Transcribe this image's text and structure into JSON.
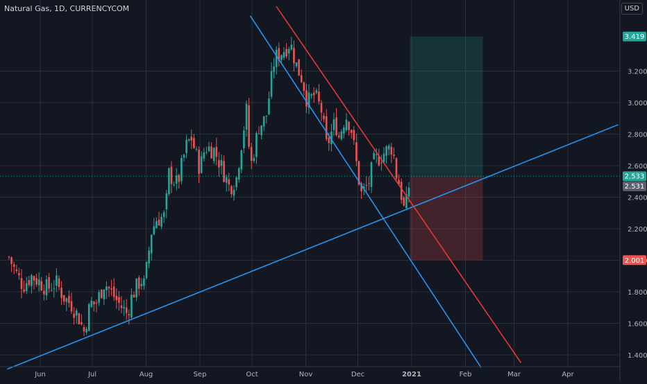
{
  "chart_data": {
    "type": "candlestick",
    "title": "Natural Gas, 1D, CURRENCYCOM",
    "currency": "USD",
    "y_ticks": [
      "1.400",
      "1.600",
      "1.800",
      "2.000",
      "2.200",
      "2.400",
      "2.600",
      "2.800",
      "3.000",
      "3.200"
    ],
    "x_ticks": [
      {
        "date": "2020-06-01",
        "label": "Jun"
      },
      {
        "date": "2020-07-01",
        "label": "Jul"
      },
      {
        "date": "2020-08-01",
        "label": "Aug"
      },
      {
        "date": "2020-09-01",
        "label": "Sep"
      },
      {
        "date": "2020-10-01",
        "label": "Oct"
      },
      {
        "date": "2020-11-01",
        "label": "Nov"
      },
      {
        "date": "2020-12-01",
        "label": "Dec"
      },
      {
        "date": "2021-01-01",
        "label": "2021"
      },
      {
        "date": "2021-02-01",
        "label": "Feb"
      },
      {
        "date": "2021-03-01",
        "label": "Mar"
      },
      {
        "date": "2021-04-01",
        "label": "Apr"
      }
    ],
    "close_path": [
      [
        "2020-05-14",
        2.02
      ],
      [
        "2020-05-18",
        1.92
      ],
      [
        "2020-05-22",
        1.84
      ],
      [
        "2020-05-27",
        1.9
      ],
      [
        "2020-06-01",
        1.86
      ],
      [
        "2020-06-05",
        1.82
      ],
      [
        "2020-06-10",
        1.86
      ],
      [
        "2020-06-15",
        1.76
      ],
      [
        "2020-06-19",
        1.72
      ],
      [
        "2020-06-24",
        1.62
      ],
      [
        "2020-06-26",
        1.54
      ],
      [
        "2020-06-30",
        1.73
      ],
      [
        "2020-07-03",
        1.72
      ],
      [
        "2020-07-08",
        1.86
      ],
      [
        "2020-07-13",
        1.78
      ],
      [
        "2020-07-16",
        1.73
      ],
      [
        "2020-07-21",
        1.66
      ],
      [
        "2020-07-24",
        1.78
      ],
      [
        "2020-07-29",
        1.88
      ],
      [
        "2020-07-31",
        1.84
      ],
      [
        "2020-08-04",
        2.18
      ],
      [
        "2020-08-07",
        2.26
      ],
      [
        "2020-08-12",
        2.28
      ],
      [
        "2020-08-14",
        2.55
      ],
      [
        "2020-08-19",
        2.48
      ],
      [
        "2020-08-24",
        2.72
      ],
      [
        "2020-08-27",
        2.78
      ],
      [
        "2020-09-01",
        2.58
      ],
      [
        "2020-09-04",
        2.72
      ],
      [
        "2020-09-09",
        2.7
      ],
      [
        "2020-09-14",
        2.58
      ],
      [
        "2020-09-18",
        2.46
      ],
      [
        "2020-09-22",
        2.52
      ],
      [
        "2020-09-25",
        2.75
      ],
      [
        "2020-09-28",
        2.96
      ],
      [
        "2020-09-30",
        2.58
      ],
      [
        "2020-10-05",
        2.85
      ],
      [
        "2020-10-09",
        2.9
      ],
      [
        "2020-10-14",
        3.28
      ],
      [
        "2020-10-19",
        3.33
      ],
      [
        "2020-10-23",
        3.38
      ],
      [
        "2020-10-27",
        3.22
      ],
      [
        "2020-10-30",
        3.15
      ],
      [
        "2020-11-02",
        3.0
      ],
      [
        "2020-11-06",
        3.05
      ],
      [
        "2020-11-10",
        2.95
      ],
      [
        "2020-11-13",
        2.72
      ],
      [
        "2020-11-18",
        2.88
      ],
      [
        "2020-11-20",
        2.78
      ],
      [
        "2020-11-24",
        2.92
      ],
      [
        "2020-11-27",
        2.85
      ],
      [
        "2020-12-01",
        2.55
      ],
      [
        "2020-12-03",
        2.42
      ],
      [
        "2020-12-07",
        2.48
      ],
      [
        "2020-12-10",
        2.62
      ],
      [
        "2020-12-14",
        2.66
      ],
      [
        "2020-12-18",
        2.7
      ],
      [
        "2020-12-21",
        2.72
      ],
      [
        "2020-12-23",
        2.55
      ],
      [
        "2020-12-25",
        2.48
      ],
      [
        "2020-12-28",
        2.3
      ],
      [
        "2020-12-30",
        2.43
      ],
      [
        "2020-12-31",
        2.53
      ]
    ],
    "trend_lines": [
      {
        "color": "#2196f3",
        "points": [
          [
            "2020-05-13",
            1.31
          ],
          [
            "2021-04-30",
            2.86
          ]
        ]
      },
      {
        "color": "#2196f3",
        "points": [
          [
            "2020-09-30",
            3.55
          ],
          [
            "2021-02-10",
            1.32
          ]
        ]
      },
      {
        "color": "#e53935",
        "points": [
          [
            "2020-10-15",
            3.61
          ],
          [
            "2021-03-05",
            1.35
          ]
        ]
      }
    ],
    "position": {
      "start": "2020-12-31",
      "end": "2021-02-11",
      "entry": 2.533,
      "target": 3.419,
      "stop": 2.001,
      "price_labels": [
        {
          "value": 3.419,
          "text": "3.419",
          "color": "#26a69a"
        },
        {
          "value": 2.533,
          "text": "2.533",
          "color": "#26a69a"
        },
        {
          "value": 2.531,
          "text": "2.531",
          "color": "#5d606b"
        },
        {
          "value": 2.001,
          "text": "2.001",
          "color": "#ef5350"
        }
      ]
    },
    "colors": {
      "background": "#131722",
      "grid": "#2a2e39",
      "up": "#26a69a",
      "down": "#ef5350",
      "text": "#b2b5be"
    },
    "grid": true
  }
}
